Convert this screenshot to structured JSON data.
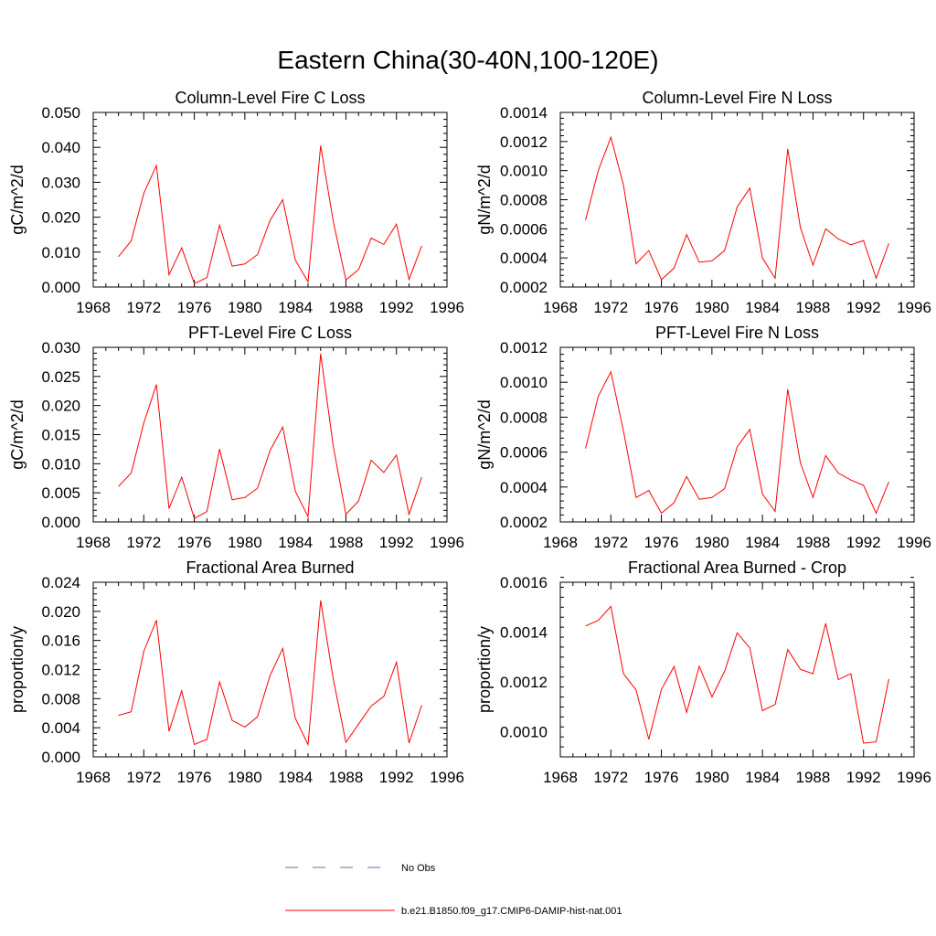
{
  "figure_title": "Eastern China(30-40N,100-120E)",
  "legend": {
    "entries": [
      {
        "label": "No Obs",
        "color": "#6a6aaa",
        "dash": true
      },
      {
        "label": "b.e21.B1850.f09_g17.CMIP6-DAMIP-hist-nat.001",
        "color": "#ff0000",
        "dash": false
      }
    ]
  },
  "chart_data": [
    {
      "type": "line",
      "title": "Column-Level Fire C Loss",
      "ylabel": "gC/m^2/d",
      "xlim": [
        1968,
        1996
      ],
      "xticks": [
        1968,
        1972,
        1976,
        1980,
        1984,
        1988,
        1992,
        1996
      ],
      "ylim": [
        0,
        0.05
      ],
      "yticks": [
        "0.000",
        "0.010",
        "0.020",
        "0.030",
        "0.040",
        "0.050"
      ],
      "x": [
        1970,
        1971,
        1972,
        1973,
        1974,
        1975,
        1976,
        1977,
        1978,
        1979,
        1980,
        1981,
        1982,
        1983,
        1984,
        1985,
        1986,
        1987,
        1988,
        1989,
        1990,
        1991,
        1992,
        1993,
        1994
      ],
      "series": [
        {
          "name": "b.e21.B1850.f09_g17.CMIP6-DAMIP-hist-nat.001",
          "color": "#ff0000",
          "values": [
            0.0087,
            0.0132,
            0.0268,
            0.0348,
            0.0035,
            0.0112,
            0.001,
            0.0027,
            0.0177,
            0.006,
            0.0066,
            0.0093,
            0.0191,
            0.025,
            0.0077,
            0.0015,
            0.0405,
            0.0188,
            0.002,
            0.005,
            0.014,
            0.0122,
            0.018,
            0.0022,
            0.0118
          ]
        }
      ]
    },
    {
      "type": "line",
      "title": "Column-Level Fire N Loss",
      "ylabel": "gN/m^2/d",
      "xlim": [
        1968,
        1996
      ],
      "xticks": [
        1968,
        1972,
        1976,
        1980,
        1984,
        1988,
        1992,
        1996
      ],
      "ylim": [
        0.0002,
        0.0014
      ],
      "yticks": [
        "0.0002",
        "0.0004",
        "0.0006",
        "0.0008",
        "0.0010",
        "0.0012",
        "0.0014"
      ],
      "x": [
        1970,
        1971,
        1972,
        1973,
        1974,
        1975,
        1976,
        1977,
        1978,
        1979,
        1980,
        1981,
        1982,
        1983,
        1984,
        1985,
        1986,
        1987,
        1988,
        1989,
        1990,
        1991,
        1992,
        1993,
        1994
      ],
      "series": [
        {
          "name": "b.e21.B1850.f09_g17.CMIP6-DAMIP-hist-nat.001",
          "color": "#ff0000",
          "values": [
            0.00066,
            0.001,
            0.00123,
            0.0009,
            0.00036,
            0.00045,
            0.00025,
            0.00033,
            0.00056,
            0.00037,
            0.00038,
            0.00045,
            0.00075,
            0.00088,
            0.0004,
            0.00026,
            0.00115,
            0.00061,
            0.00035,
            0.0006,
            0.00053,
            0.00049,
            0.00052,
            0.00026,
            0.0005
          ]
        }
      ]
    },
    {
      "type": "line",
      "title": "PFT-Level Fire C Loss",
      "ylabel": "gC/m^2/d",
      "xlim": [
        1968,
        1996
      ],
      "xticks": [
        1968,
        1972,
        1976,
        1980,
        1984,
        1988,
        1992,
        1996
      ],
      "ylim": [
        0,
        0.03
      ],
      "yticks": [
        "0.000",
        "0.005",
        "0.010",
        "0.015",
        "0.020",
        "0.025",
        "0.030"
      ],
      "x": [
        1970,
        1971,
        1972,
        1973,
        1974,
        1975,
        1976,
        1977,
        1978,
        1979,
        1980,
        1981,
        1982,
        1983,
        1984,
        1985,
        1986,
        1987,
        1988,
        1989,
        1990,
        1991,
        1992,
        1993,
        1994
      ],
      "series": [
        {
          "name": "b.e21.B1850.f09_g17.CMIP6-DAMIP-hist-nat.001",
          "color": "#ff0000",
          "values": [
            0.0061,
            0.0084,
            0.017,
            0.0236,
            0.0023,
            0.0077,
            0.0006,
            0.0018,
            0.0125,
            0.0038,
            0.0042,
            0.0058,
            0.0123,
            0.0163,
            0.0053,
            0.0009,
            0.0289,
            0.013,
            0.0013,
            0.0036,
            0.0106,
            0.0085,
            0.0115,
            0.0013,
            0.0077
          ]
        }
      ]
    },
    {
      "type": "line",
      "title": "PFT-Level Fire N Loss",
      "ylabel": "gN/m^2/d",
      "xlim": [
        1968,
        1996
      ],
      "xticks": [
        1968,
        1972,
        1976,
        1980,
        1984,
        1988,
        1992,
        1996
      ],
      "ylim": [
        0.0002,
        0.0012
      ],
      "yticks": [
        "0.0002",
        "0.0004",
        "0.0006",
        "0.0008",
        "0.0010",
        "0.0012"
      ],
      "x": [
        1970,
        1971,
        1972,
        1973,
        1974,
        1975,
        1976,
        1977,
        1978,
        1979,
        1980,
        1981,
        1982,
        1983,
        1984,
        1985,
        1986,
        1987,
        1988,
        1989,
        1990,
        1991,
        1992,
        1993,
        1994
      ],
      "series": [
        {
          "name": "b.e21.B1850.f09_g17.CMIP6-DAMIP-hist-nat.001",
          "color": "#ff0000",
          "values": [
            0.00062,
            0.00092,
            0.00106,
            0.00072,
            0.00034,
            0.00038,
            0.00025,
            0.00031,
            0.00046,
            0.00033,
            0.00034,
            0.00039,
            0.00063,
            0.00073,
            0.00036,
            0.00026,
            0.00096,
            0.00054,
            0.00034,
            0.00058,
            0.00048,
            0.00044,
            0.00041,
            0.00025,
            0.00043
          ]
        }
      ]
    },
    {
      "type": "line",
      "title": "Fractional Area Burned",
      "ylabel": "proportion/y",
      "xlim": [
        1968,
        1996
      ],
      "xticks": [
        1968,
        1972,
        1976,
        1980,
        1984,
        1988,
        1992,
        1996
      ],
      "ylim": [
        0,
        0.024
      ],
      "yticks": [
        "0.000",
        "0.004",
        "0.008",
        "0.012",
        "0.016",
        "0.020",
        "0.024"
      ],
      "x": [
        1970,
        1971,
        1972,
        1973,
        1974,
        1975,
        1976,
        1977,
        1978,
        1979,
        1980,
        1981,
        1982,
        1983,
        1984,
        1985,
        1986,
        1987,
        1988,
        1989,
        1990,
        1991,
        1992,
        1993,
        1994
      ],
      "series": [
        {
          "name": "b.e21.B1850.f09_g17.CMIP6-DAMIP-hist-nat.001",
          "color": "#ff0000",
          "values": [
            0.0057,
            0.0062,
            0.0145,
            0.0188,
            0.0035,
            0.0091,
            0.0017,
            0.0024,
            0.0103,
            0.005,
            0.0041,
            0.0055,
            0.0112,
            0.0149,
            0.0053,
            0.0017,
            0.0215,
            0.0107,
            0.002,
            0.0045,
            0.007,
            0.0083,
            0.013,
            0.0019,
            0.0071
          ]
        }
      ]
    },
    {
      "type": "line",
      "title": "Fractional Area Burned - Crop",
      "ylabel": "proportion/y",
      "xlim": [
        1968,
        1996
      ],
      "xticks": [
        1968,
        1972,
        1976,
        1980,
        1984,
        1988,
        1992,
        1996
      ],
      "ylim": [
        0.0009,
        0.0016
      ],
      "yticks": [
        "0.0010",
        "0.0012",
        "0.0014",
        "0.0016"
      ],
      "ytick_values": [
        0.001,
        0.0012,
        0.0014,
        0.0016
      ],
      "x": [
        1970,
        1971,
        1972,
        1973,
        1974,
        1975,
        1976,
        1977,
        1978,
        1979,
        1980,
        1981,
        1982,
        1983,
        1984,
        1985,
        1986,
        1987,
        1988,
        1989,
        1990,
        1991,
        1992,
        1993,
        1994
      ],
      "series": [
        {
          "name": "b.e21.B1850.f09_g17.CMIP6-DAMIP-hist-nat.001",
          "color": "#ff0000",
          "values": [
            0.001425,
            0.001447,
            0.001503,
            0.001233,
            0.001168,
            0.00097,
            0.00117,
            0.001262,
            0.001078,
            0.001263,
            0.00114,
            0.001243,
            0.001397,
            0.001337,
            0.001085,
            0.00111,
            0.00133,
            0.001251,
            0.001233,
            0.001435,
            0.00121,
            0.001233,
            0.000955,
            0.00096,
            0.001212
          ]
        }
      ]
    }
  ]
}
